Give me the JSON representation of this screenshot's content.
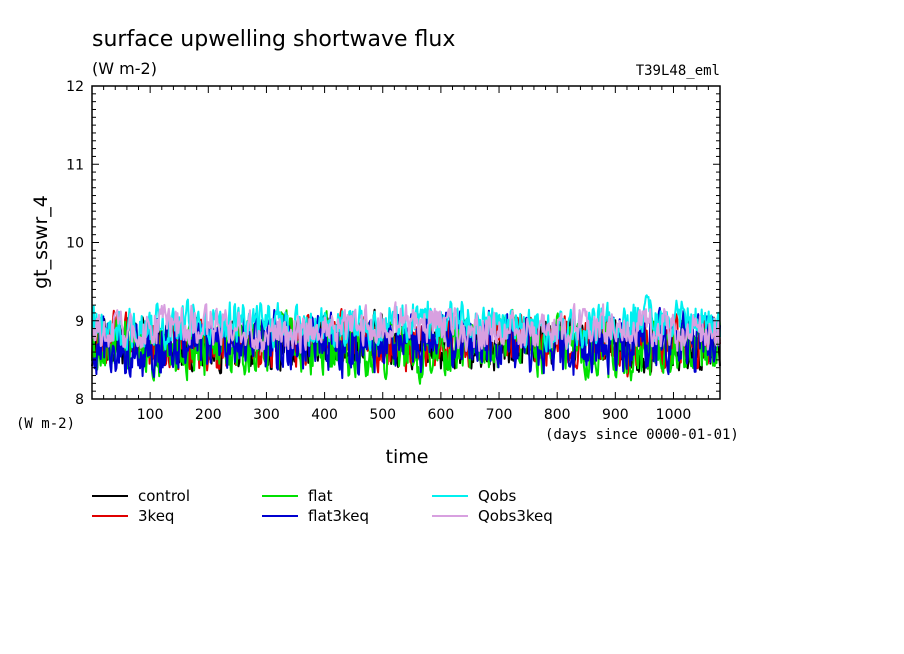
{
  "chart_data": {
    "type": "line",
    "title": "surface upwelling shortwave flux",
    "units": "(W m-2)",
    "run_label": "T39L48_eml",
    "ylabel": "gt_sswr_4",
    "ylabel_units": "(W m-2)",
    "xlabel": "time",
    "xlabel_units": "(days since 0000-01-01)",
    "xlim": [
      0,
      1080
    ],
    "ylim": [
      8,
      12
    ],
    "x_ticks": [
      100,
      200,
      300,
      400,
      500,
      600,
      700,
      800,
      900,
      1000
    ],
    "y_ticks": [
      8,
      9,
      10,
      11,
      12
    ],
    "legend_position": "bottom",
    "grid": false,
    "series": [
      {
        "name": "control",
        "color": "#000000",
        "mean": 8.7,
        "amp": 0.22,
        "min": 8.12,
        "max": 9.32
      },
      {
        "name": "3keq",
        "color": "#e00000",
        "mean": 8.72,
        "amp": 0.22,
        "min": 8.05,
        "max": 9.38
      },
      {
        "name": "flat",
        "color": "#00e000",
        "mean": 8.68,
        "amp": 0.25,
        "min": 8.1,
        "max": 9.6
      },
      {
        "name": "flat3keq",
        "color": "#0000d0",
        "mean": 8.7,
        "amp": 0.25,
        "min": 7.92,
        "max": 9.5
      },
      {
        "name": "Qobs",
        "color": "#00f0f0",
        "mean": 8.95,
        "amp": 0.18,
        "min": 8.4,
        "max": 9.42
      },
      {
        "name": "Qobs3keq",
        "color": "#d8a0e0",
        "mean": 8.9,
        "amp": 0.17,
        "min": 8.45,
        "max": 9.35
      }
    ]
  }
}
